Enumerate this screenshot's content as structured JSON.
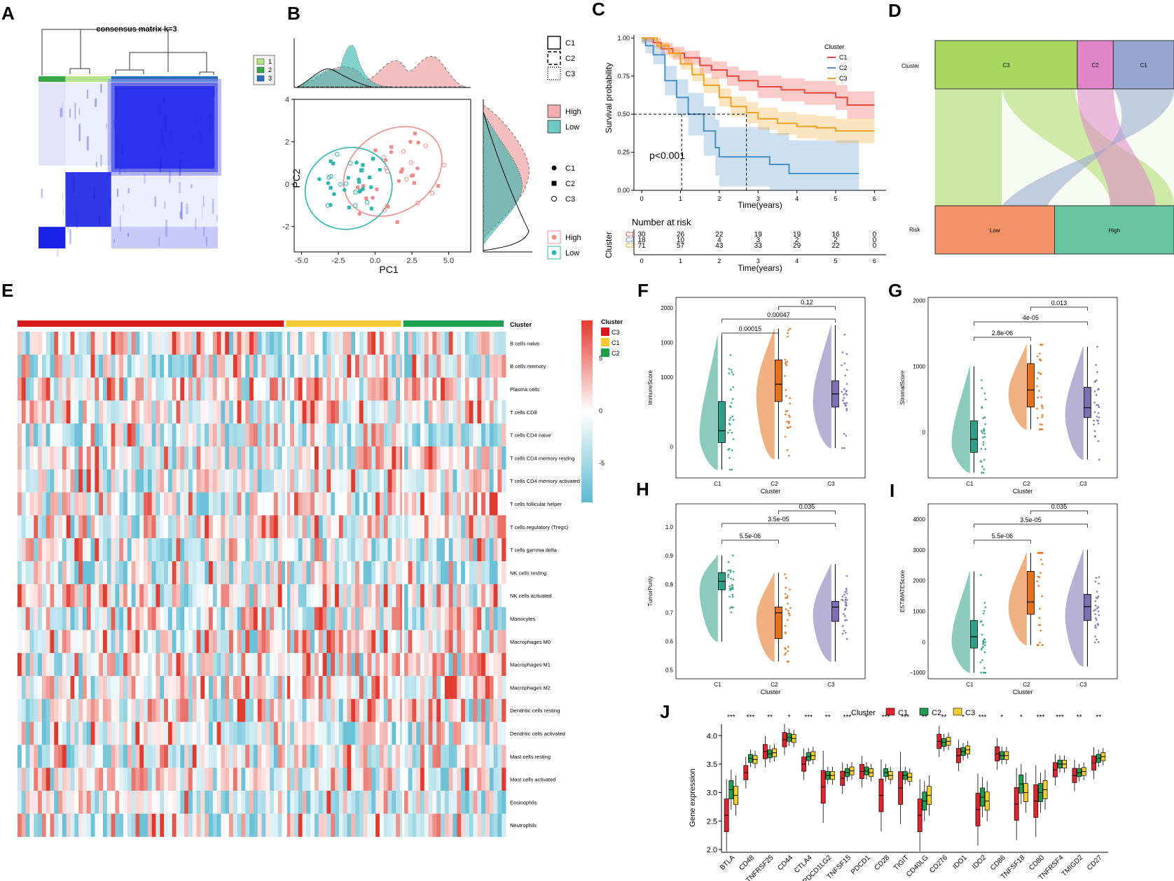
{
  "colors": {
    "cl_c1": "#e8453c",
    "cl_c2": "#4a90c8",
    "cl_c3": "#f0a020",
    "teal": "#2fb5b0",
    "pink": "#f08c8c",
    "v_c1": "#2ea087",
    "v_c2": "#e3721b",
    "v_c3": "#7c70b3",
    "j_c1": "#e0232c",
    "j_c2": "#1f9e4f",
    "j_c3": "#f2cd2c",
    "hm_red": "#e23a2e",
    "hm_blue": "#5bbad2",
    "bar_c3": "#d7191c",
    "bar_c1": "#f5cb31",
    "bar_c2": "#1fa04f",
    "alluv_c3": "#a8d860",
    "alluv_c2": "#df85c8",
    "alluv_c1": "#96a5cf",
    "alluv_low": "#f39169",
    "alluv_high": "#67c4a3",
    "mat_blue": "#1a22e8"
  },
  "panel_labels": [
    "A",
    "B",
    "C",
    "D",
    "E",
    "F",
    "G",
    "H",
    "I",
    "J"
  ],
  "chart_data": [
    {
      "id": "A",
      "type": "heatmap",
      "title": "consensus matrix k=3",
      "legend": [
        "1",
        "2",
        "3"
      ],
      "legend_colors": [
        "#b5e38b",
        "#3aa64a",
        "#2a70b8"
      ]
    },
    {
      "id": "B",
      "type": "scatter",
      "xlabel": "PC1",
      "ylabel": "PC2",
      "xlim": [
        -5.5,
        6.5
      ],
      "ylim": [
        -3.2,
        4.0
      ],
      "xticks": [
        -5.0,
        -2.5,
        0.0,
        2.5,
        5.0
      ],
      "xtick_labels": [
        "-5.0",
        "-2.5",
        "0.0",
        "2.5",
        "5.0"
      ],
      "yticks": [
        -2,
        0,
        2,
        4
      ],
      "ytick_labels": [
        "-2",
        "0",
        "2",
        "4"
      ],
      "legend_lines": [
        "C1",
        "C2",
        "C3"
      ],
      "legend_fill": [
        "High",
        "Low"
      ],
      "legend_shapes": [
        "C1",
        "C2",
        "C3"
      ],
      "legend_points": [
        "High",
        "Low"
      ],
      "groups": [
        {
          "name": "High",
          "color": "#f08c8c",
          "center": [
            1.2,
            0.6
          ],
          "radii": [
            3.6,
            1.9
          ],
          "angle": 35
        },
        {
          "name": "Low",
          "color": "#2fb5b0",
          "center": [
            -1.8,
            -0.2
          ],
          "radii": [
            3.0,
            1.9
          ],
          "angle": 25
        }
      ]
    },
    {
      "id": "C",
      "type": "line",
      "xlabel": "Time(years)",
      "ylabel": "Survival probability",
      "xlim": [
        -0.2,
        6.3
      ],
      "ylim": [
        0,
        1.02
      ],
      "xticks": [
        0,
        1,
        2,
        3,
        4,
        5,
        6
      ],
      "yticks": [
        0,
        0.25,
        0.5,
        0.75,
        1.0
      ],
      "ytick_labels": [
        "0.00",
        "0.25",
        "0.50",
        "0.75",
        "1.00"
      ],
      "pvalue": "p<0.001",
      "legend_title": "Cluster",
      "series": [
        {
          "name": "C1",
          "x": [
            0,
            0.3,
            0.5,
            0.8,
            1.1,
            1.5,
            1.8,
            2.2,
            2.5,
            3.0,
            3.6,
            4.2,
            5.0,
            5.3,
            6.0
          ],
          "y": [
            1.0,
            0.97,
            0.93,
            0.9,
            0.87,
            0.82,
            0.79,
            0.75,
            0.72,
            0.68,
            0.66,
            0.64,
            0.61,
            0.56,
            0.56
          ]
        },
        {
          "name": "C2",
          "x": [
            0,
            0.1,
            0.3,
            0.6,
            0.9,
            1.2,
            1.6,
            1.9,
            2.0,
            3.3,
            3.8,
            5.6
          ],
          "y": [
            1.0,
            0.95,
            0.89,
            0.72,
            0.61,
            0.5,
            0.39,
            0.28,
            0.22,
            0.17,
            0.11,
            0.11
          ]
        },
        {
          "name": "C3",
          "x": [
            0,
            0.4,
            0.7,
            1.0,
            1.3,
            1.6,
            2.0,
            2.3,
            2.7,
            3.0,
            3.5,
            4.0,
            4.5,
            5.0,
            6.0
          ],
          "y": [
            1.0,
            0.95,
            0.9,
            0.83,
            0.76,
            0.69,
            0.61,
            0.55,
            0.51,
            0.47,
            0.44,
            0.42,
            0.41,
            0.39,
            0.39
          ]
        }
      ],
      "risk_title": "Number at risk",
      "risk_ylabel": "Cluster",
      "risk_rows": [
        {
          "name": "C1",
          "values": [
            "30",
            "26",
            "22",
            "19",
            "19",
            "16",
            "0"
          ]
        },
        {
          "name": "C2",
          "values": [
            "18",
            "10",
            "4",
            "3",
            "2",
            "2",
            "0"
          ]
        },
        {
          "name": "C3",
          "values": [
            "71",
            "57",
            "43",
            "33",
            "29",
            "22",
            "0"
          ]
        }
      ]
    },
    {
      "id": "D",
      "type": "sankey",
      "axis1": "Cluster",
      "axis2": "Risk",
      "top": [
        {
          "name": "C3",
          "share": 0.595
        },
        {
          "name": "C2",
          "share": 0.151
        },
        {
          "name": "C1",
          "share": 0.254
        }
      ],
      "bottom": [
        {
          "name": "Low",
          "share": 0.5
        },
        {
          "name": "High",
          "share": 0.5
        }
      ]
    },
    {
      "id": "E",
      "type": "heatmap",
      "annotation_title": "Cluster",
      "groups": [
        {
          "name": "C3",
          "share": 0.55
        },
        {
          "name": "C1",
          "share": 0.24
        },
        {
          "name": "C2",
          "share": 0.21
        }
      ],
      "colorbar_ticks": [
        "5",
        "0",
        "-5"
      ],
      "legend_title": "Cluster",
      "legend": [
        "C3",
        "C1",
        "C2"
      ],
      "rows": [
        "B cells naive",
        "B cells memory",
        "Plasma cells",
        "T cells CD8",
        "T cells CD4 naive",
        "T cells CD4 memory resting",
        "T cells CD4 memory activated",
        "T cells follicular helper",
        "T cells regulatory (Tregs)",
        "T cells gamma delta",
        "NK cells resting",
        "NK cells activated",
        "Monocytes",
        "Macrophages M0",
        "Macrophages M1",
        "Macrophages M2",
        "Dendritic cells resting",
        "Dendritic cells activated",
        "Mast cells resting",
        "Mast cells activated",
        "Eosinophils",
        "Neutrophils"
      ]
    },
    {
      "id": "F",
      "type": "box",
      "xlabel": "Cluster",
      "ylabel": "ImmuneScore",
      "categories": [
        "C1",
        "C2",
        "C3"
      ],
      "ylim": [
        -450,
        2150
      ],
      "yticks": [
        0,
        1000,
        2000
      ],
      "ytick_labels": [
        "0",
        "1000",
        "2000"
      ],
      "minor_ticks": [
        500,
        1500
      ],
      "minor_labels": [
        "",
        "1000"
      ],
      "stats": [
        {
          "name": "C1",
          "min": -330,
          "q1": 60,
          "median": 230,
          "q3": 650,
          "max": 1600
        },
        {
          "name": "C2",
          "min": -180,
          "q1": 650,
          "median": 900,
          "q3": 1250,
          "max": 1700
        },
        {
          "name": "C3",
          "min": -20,
          "q1": 570,
          "median": 760,
          "q3": 950,
          "max": 1750
        }
      ],
      "comparisons": [
        {
          "pair": [
            0,
            1
          ],
          "label": "0.00015"
        },
        {
          "pair": [
            0,
            2
          ],
          "label": "0.00047"
        },
        {
          "pair": [
            1,
            2
          ],
          "label": "0.12"
        }
      ]
    },
    {
      "id": "G",
      "type": "box",
      "xlabel": "Cluster",
      "ylabel": "StromalScore",
      "categories": [
        "C1",
        "C2",
        "C3"
      ],
      "ylim": [
        -700,
        2050
      ],
      "yticks": [
        0,
        1000,
        2000
      ],
      "ytick_labels": [
        "0",
        "1000",
        "2000"
      ],
      "stats": [
        {
          "name": "C1",
          "min": -620,
          "q1": -310,
          "median": -110,
          "q3": 170,
          "max": 1000
        },
        {
          "name": "C2",
          "min": 40,
          "q1": 380,
          "median": 640,
          "q3": 1040,
          "max": 1330
        },
        {
          "name": "C3",
          "min": -420,
          "q1": 220,
          "median": 370,
          "q3": 680,
          "max": 1300
        }
      ],
      "comparisons": [
        {
          "pair": [
            0,
            1
          ],
          "label": "2.8e-06"
        },
        {
          "pair": [
            0,
            2
          ],
          "label": "4e-05"
        },
        {
          "pair": [
            1,
            2
          ],
          "label": "0.013"
        }
      ]
    },
    {
      "id": "H",
      "type": "box",
      "xlabel": "Cluster",
      "ylabel": "TumorPurity",
      "categories": [
        "C1",
        "C2",
        "C3"
      ],
      "ylim": [
        0.47,
        1.08
      ],
      "yticks": [
        0.5,
        0.6,
        0.7,
        0.8,
        0.9,
        1.0
      ],
      "ytick_labels": [
        "0.5",
        "0.6",
        "0.7",
        "0.8",
        "0.9",
        "1.0"
      ],
      "stats": [
        {
          "name": "C1",
          "min": 0.6,
          "q1": 0.78,
          "median": 0.81,
          "q3": 0.84,
          "max": 0.9
        },
        {
          "name": "C2",
          "min": 0.53,
          "q1": 0.61,
          "median": 0.7,
          "q3": 0.72,
          "max": 0.84
        },
        {
          "name": "C3",
          "min": 0.53,
          "q1": 0.67,
          "median": 0.72,
          "q3": 0.74,
          "max": 0.87
        }
      ],
      "comparisons": [
        {
          "pair": [
            0,
            1
          ],
          "label": "5.5e-06"
        },
        {
          "pair": [
            0,
            2
          ],
          "label": "3.5e-05"
        },
        {
          "pair": [
            1,
            2
          ],
          "label": "0.035"
        }
      ]
    },
    {
      "id": "I",
      "type": "box",
      "xlabel": "Cluster",
      "ylabel": "ESTIMATEScore",
      "categories": [
        "C1",
        "C2",
        "C3"
      ],
      "ylim": [
        -1200,
        4500
      ],
      "yticks": [
        -1000,
        0,
        1000,
        2000,
        3000,
        4000
      ],
      "ytick_labels": [
        "−1000",
        "0",
        "1000",
        "2000",
        "3000",
        "4000"
      ],
      "stats": [
        {
          "name": "C1",
          "min": -1000,
          "q1": -200,
          "median": 170,
          "q3": 700,
          "max": 2300
        },
        {
          "name": "C2",
          "min": -100,
          "q1": 900,
          "median": 1300,
          "q3": 2300,
          "max": 2900
        },
        {
          "name": "C3",
          "min": -800,
          "q1": 700,
          "median": 1150,
          "q3": 1550,
          "max": 3000
        }
      ],
      "comparisons": [
        {
          "pair": [
            0,
            1
          ],
          "label": "5.5e-06"
        },
        {
          "pair": [
            0,
            2
          ],
          "label": "3.5e-05"
        },
        {
          "pair": [
            1,
            2
          ],
          "label": "0.035"
        }
      ]
    },
    {
      "id": "J",
      "type": "box",
      "ylabel": "Gene expression",
      "legend_title": "Cluster",
      "series_names": [
        "C1",
        "C2",
        "C3"
      ],
      "ylim": [
        1.95,
        4.2
      ],
      "yticks": [
        2.0,
        2.5,
        3.0,
        3.5,
        4.0
      ],
      "ytick_labels": [
        "2.0",
        "2.5",
        "3.0",
        "3.5",
        "4.0"
      ],
      "genes": [
        "BTLA",
        "CD48",
        "TNFRSF25",
        "CD44",
        "CTLA4",
        "PDCD1LG2",
        "TNFSF15",
        "PDCD1",
        "CD28",
        "TIGIT",
        "CD40LG",
        "CD276",
        "IDO1",
        "IDO2",
        "CD86",
        "TNFSF18",
        "CD80",
        "TNFRSF4",
        "TMIGD2",
        "CD27"
      ],
      "signif": [
        "***",
        "***",
        "**",
        "*",
        "***",
        "**",
        "***",
        "*",
        "***",
        "***",
        "**",
        "**",
        "*",
        "***",
        "*",
        "*",
        "***",
        "***",
        "**",
        "**"
      ],
      "medians": [
        [
          2.6,
          3.05,
          2.95
        ],
        [
          3.35,
          3.6,
          3.58
        ],
        [
          3.72,
          3.68,
          3.7
        ],
        [
          3.93,
          3.97,
          3.95
        ],
        [
          3.5,
          3.63,
          3.65
        ],
        [
          3.1,
          3.3,
          3.3
        ],
        [
          3.25,
          3.35,
          3.38
        ],
        [
          3.37,
          3.38,
          3.35
        ],
        [
          2.95,
          3.35,
          3.3
        ],
        [
          3.08,
          3.3,
          3.27
        ],
        [
          2.6,
          2.85,
          2.95
        ],
        [
          3.9,
          3.88,
          3.9
        ],
        [
          3.65,
          3.72,
          3.75
        ],
        [
          2.7,
          2.92,
          2.85
        ],
        [
          3.68,
          3.65,
          3.65
        ],
        [
          2.8,
          3.15,
          3.0
        ],
        [
          2.85,
          3.0,
          3.05
        ],
        [
          3.4,
          3.5,
          3.5
        ],
        [
          3.3,
          3.35,
          3.37
        ],
        [
          3.52,
          3.6,
          3.63
        ]
      ]
    }
  ]
}
